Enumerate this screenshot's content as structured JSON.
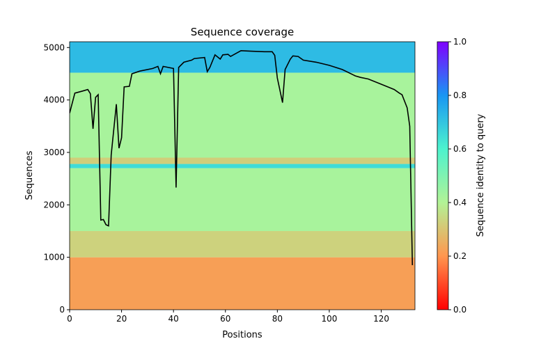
{
  "chart_data": {
    "type": "coverage",
    "title": "Sequence coverage",
    "x_label": "Positions",
    "y_label": "Sequences",
    "colorbar_label": "Sequence identity to query",
    "xlim": [
      0,
      133
    ],
    "ylim": [
      0,
      5110
    ],
    "xticks": [
      0,
      20,
      40,
      60,
      80,
      100,
      120
    ],
    "yticks": [
      0,
      1000,
      2000,
      3000,
      4000,
      5000
    ],
    "clim": [
      0,
      1
    ],
    "cticks": [
      0.0,
      0.2,
      0.4,
      0.6,
      0.8,
      1.0
    ],
    "colormap": [
      "#ff0000",
      "#ff964f",
      "#b2f396",
      "#4df3ce",
      "#1996f3",
      "#8000ff"
    ],
    "bands": [
      {
        "y": [
          0,
          1000
        ],
        "identity": 0.22
      },
      {
        "y": [
          1000,
          1500
        ],
        "identity": 0.33
      },
      {
        "y": [
          1500,
          2700
        ],
        "identity": 0.42
      },
      {
        "y": [
          2700,
          2780
        ],
        "identity": 0.65
      },
      {
        "y": [
          2780,
          2900
        ],
        "identity": 0.32
      },
      {
        "y": [
          2900,
          4520
        ],
        "identity": 0.42
      },
      {
        "y": [
          4520,
          5110
        ],
        "identity": 0.72
      }
    ],
    "line_color": "#000000",
    "x": [
      0,
      2,
      5,
      7,
      8,
      9,
      10,
      11,
      12,
      13,
      14,
      15,
      16,
      18,
      19,
      20,
      21,
      23,
      24,
      27,
      32,
      34,
      35,
      36,
      38,
      40,
      41,
      42,
      44,
      47,
      48,
      52,
      53,
      54,
      56,
      58,
      59,
      61,
      62,
      66,
      70,
      75,
      78,
      79,
      80,
      82,
      83,
      85,
      86,
      88,
      90,
      95,
      100,
      105,
      110,
      112,
      115,
      120,
      125,
      127,
      128,
      130,
      131,
      132
    ],
    "values": [
      3750,
      4130,
      4170,
      4200,
      4120,
      3450,
      4050,
      4100,
      1710,
      1720,
      1620,
      1600,
      2950,
      3920,
      3080,
      3280,
      4250,
      4260,
      4500,
      4550,
      4600,
      4640,
      4500,
      4640,
      4620,
      4600,
      2330,
      4620,
      4720,
      4760,
      4790,
      4810,
      4540,
      4620,
      4860,
      4780,
      4860,
      4870,
      4830,
      4940,
      4930,
      4920,
      4920,
      4850,
      4420,
      3950,
      4580,
      4780,
      4840,
      4830,
      4760,
      4720,
      4660,
      4580,
      4460,
      4430,
      4400,
      4300,
      4200,
      4130,
      4100,
      3850,
      3500,
      850
    ]
  }
}
